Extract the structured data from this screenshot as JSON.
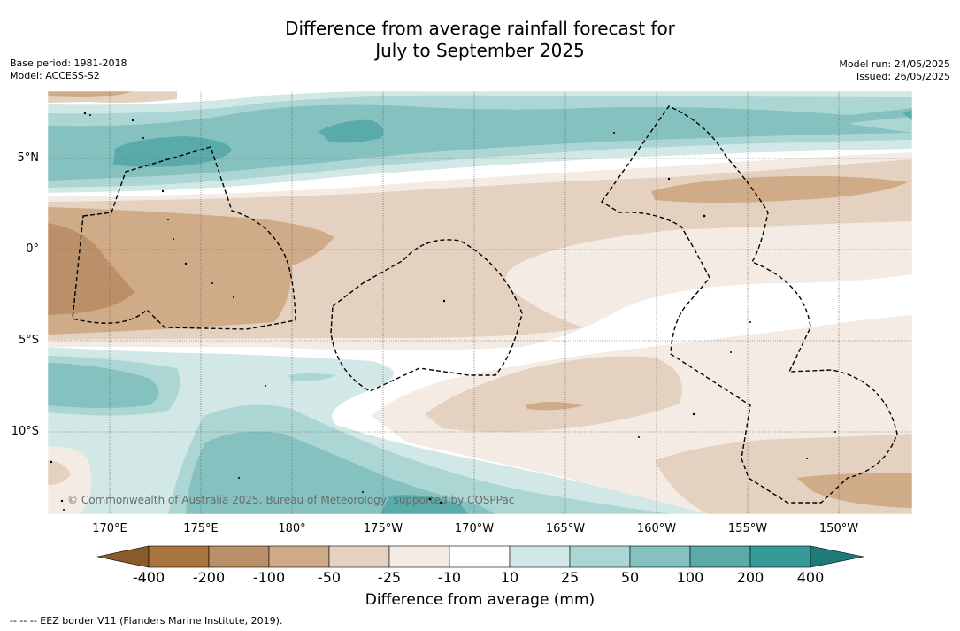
{
  "title_line1": "Difference from average rainfall forecast for",
  "title_line2": "July to September 2025",
  "base_period": "Base period: 1981-2018",
  "model": "Model: ACCESS-S2",
  "model_run": "Model run: 24/05/2025",
  "issued": "Issued: 26/05/2025",
  "map": {
    "longitude_labels": [
      "170°E",
      "175°E",
      "180°",
      "175°W",
      "170°W",
      "165°W",
      "160°W",
      "155°W",
      "150°W"
    ],
    "latitude_labels": [
      "5°N",
      "0°",
      "5°S",
      "10°S"
    ],
    "copyright": "© Commonwealth of Australia 2025, Bureau of Meteorology, supported by COSPPac"
  },
  "colorbar": {
    "ticks": [
      "-400",
      "-200",
      "-100",
      "-50",
      "-25",
      "-10",
      "10",
      "25",
      "50",
      "100",
      "200",
      "400"
    ],
    "colors": [
      "#8b5a2b",
      "#a87440",
      "#bb9068",
      "#cfab88",
      "#e4d1bf",
      "#f4ebe5",
      "#ffffff",
      "#d2e8e6",
      "#acd6d4",
      "#85c1bf",
      "#5aaaaa",
      "#369a98",
      "#1f7b78"
    ],
    "label": "Difference from average (mm)"
  },
  "footnote": "--  --  -- EEZ border V11 (Flanders Marine Institute, 2019)."
}
